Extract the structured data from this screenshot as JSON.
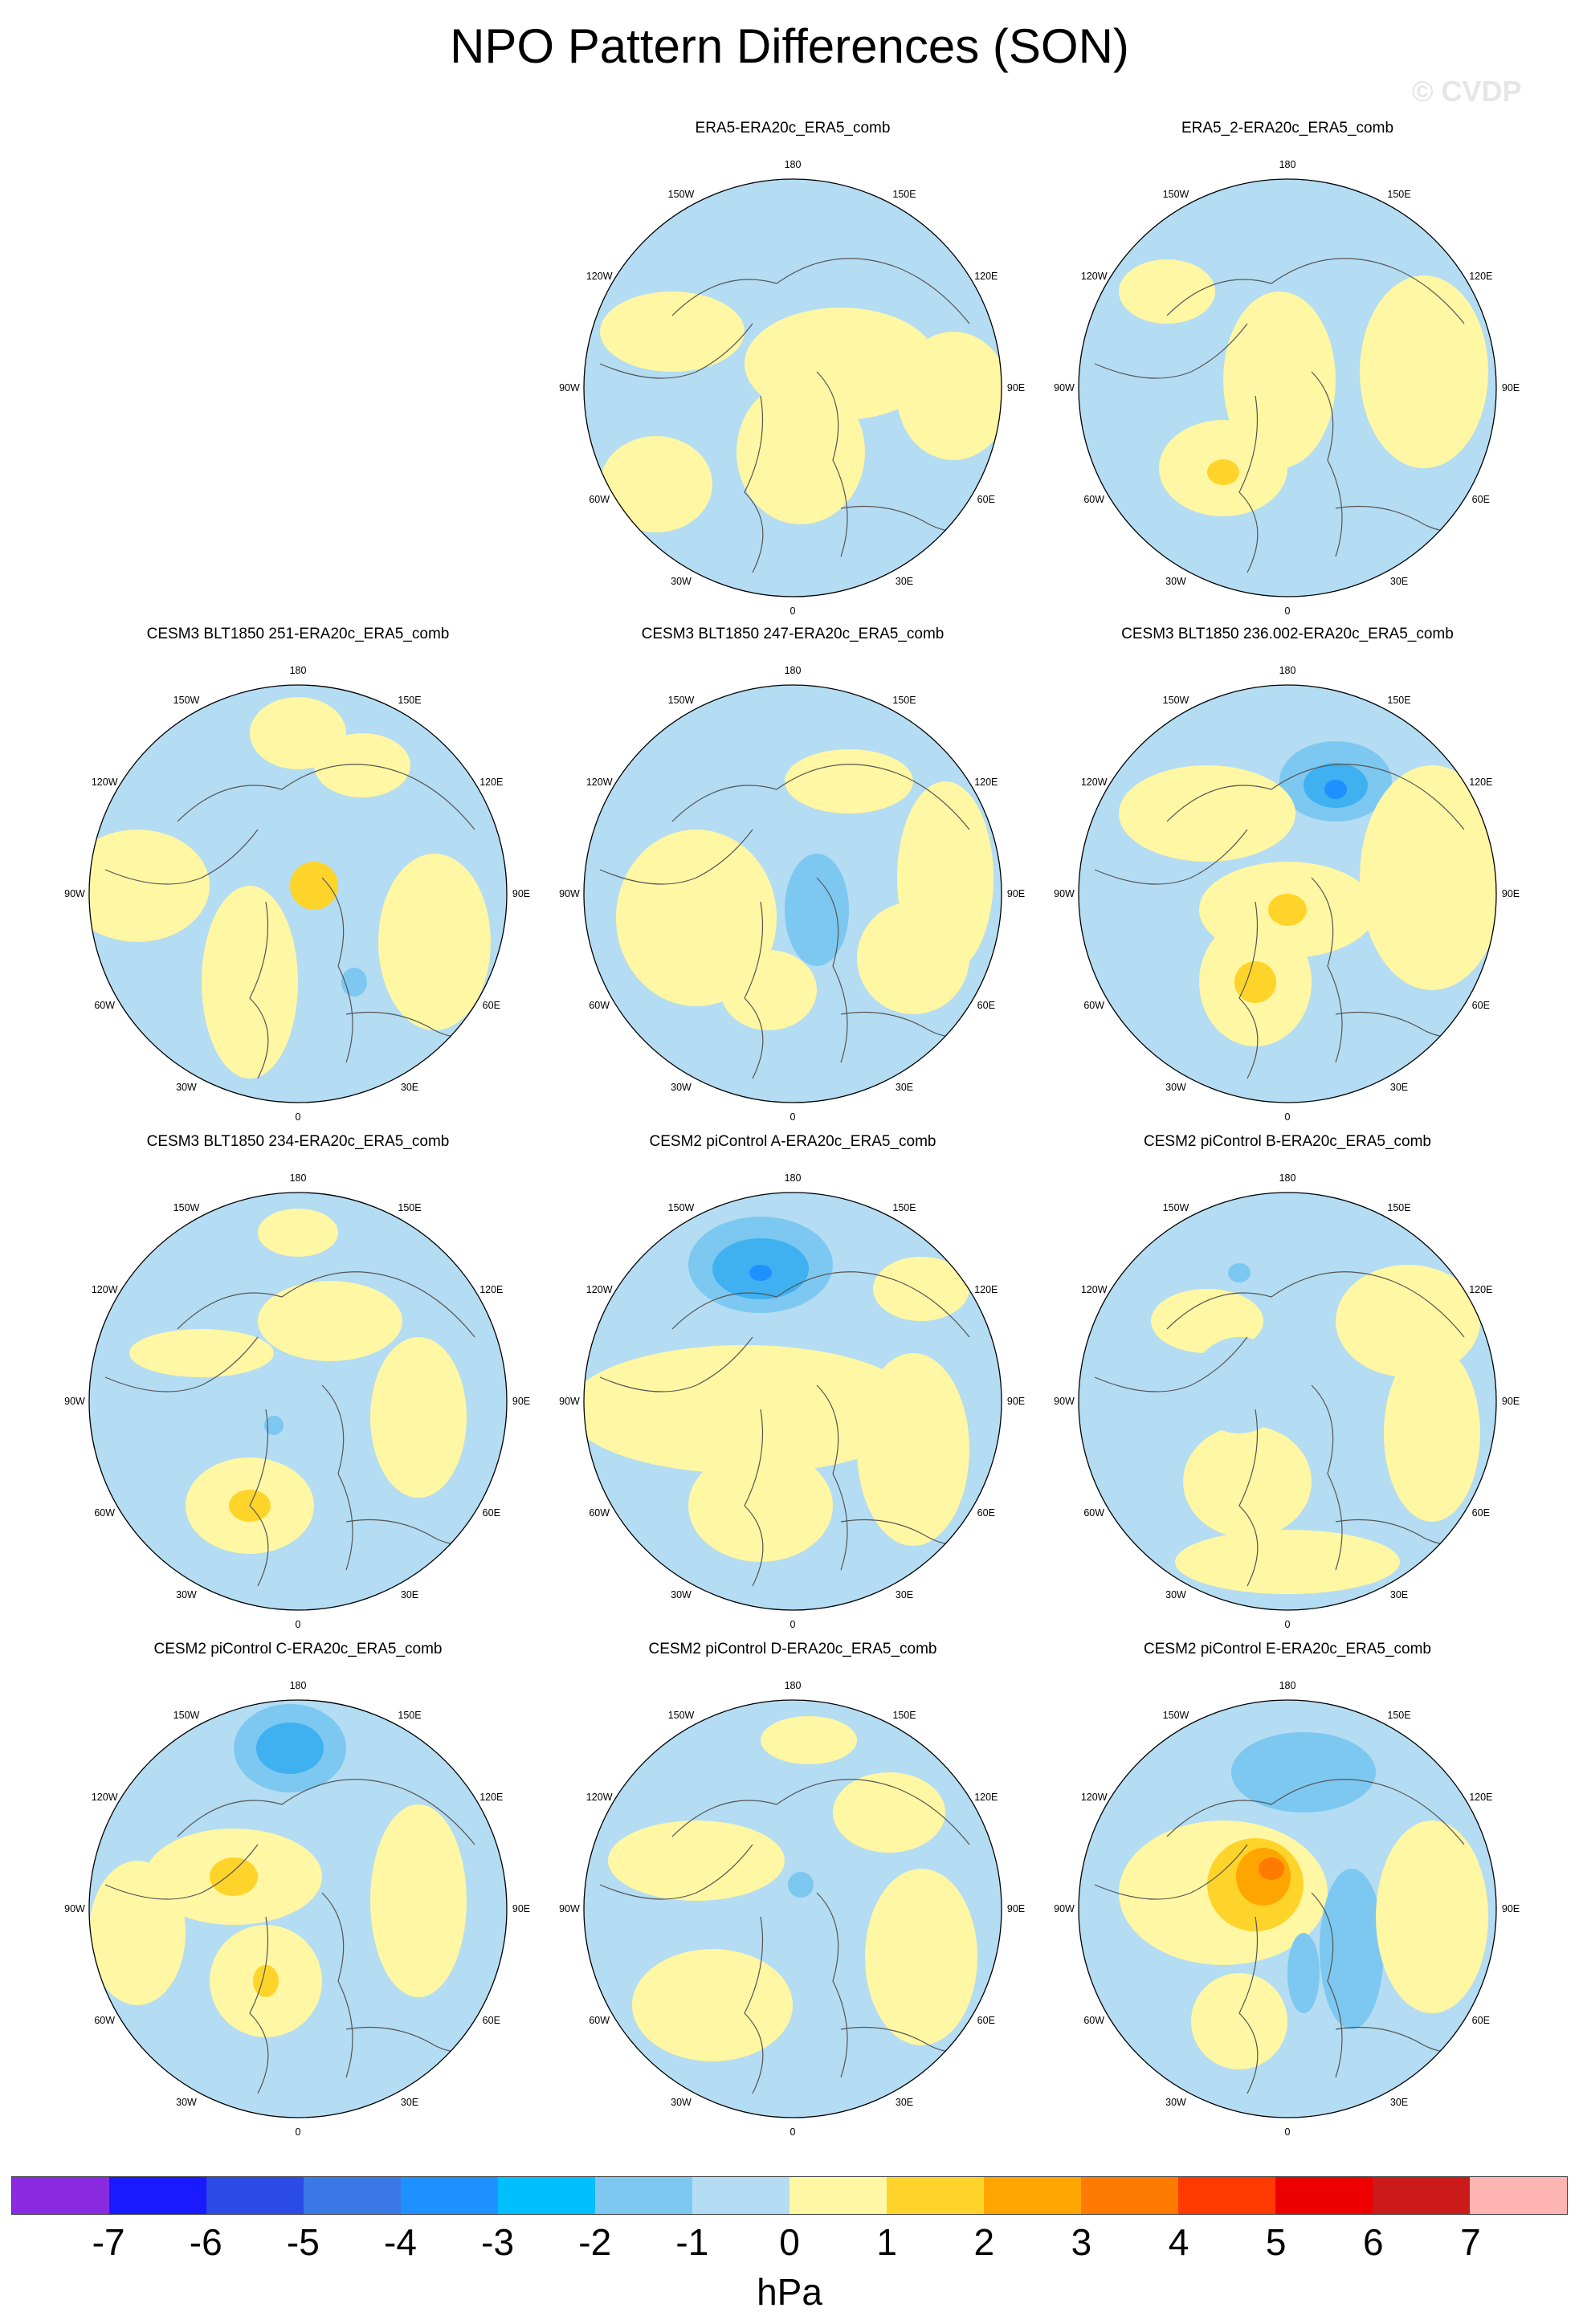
{
  "title": "NPO Pattern Differences (SON)",
  "watermark": "© CVDP",
  "longitude_labels": [
    "180",
    "150E",
    "120E",
    "90E",
    "60E",
    "30E",
    "0",
    "30W",
    "60W",
    "90W",
    "120W",
    "150W"
  ],
  "colorbar": {
    "unit": "hPa",
    "ticks": [
      "-7",
      "-6",
      "-5",
      "-4",
      "-3",
      "-2",
      "-1",
      "0",
      "1",
      "2",
      "3",
      "4",
      "5",
      "6",
      "7"
    ],
    "colors": [
      "#8a2be2",
      "#1a1aff",
      "#2a4be6",
      "#3a78e6",
      "#1e90ff",
      "#00bfff",
      "#7cc8f0",
      "#b4dcf2",
      "#fff7a3",
      "#ffd42a",
      "#ffa500",
      "#ff7a00",
      "#ff3a00",
      "#ee0000",
      "#cc1a1a",
      "#ffb4b4"
    ]
  },
  "panels": [
    {
      "title": "ERA5-ERA20c_ERA5_comb"
    },
    {
      "title": "ERA5_2-ERA20c_ERA5_comb"
    },
    {
      "title": "CESM3 BLT1850 251-ERA20c_ERA5_comb"
    },
    {
      "title": "CESM3 BLT1850 247-ERA20c_ERA5_comb"
    },
    {
      "title": "CESM3 BLT1850 236.002-ERA20c_ERA5_comb"
    },
    {
      "title": "CESM3 BLT1850 234-ERA20c_ERA5_comb"
    },
    {
      "title": "CESM2 piControl A-ERA20c_ERA5_comb"
    },
    {
      "title": "CESM2 piControl B-ERA20c_ERA5_comb"
    },
    {
      "title": "CESM2 piControl C-ERA20c_ERA5_comb"
    },
    {
      "title": "CESM2 piControl D-ERA20c_ERA5_comb"
    },
    {
      "title": "CESM2 piControl E-ERA20c_ERA5_comb"
    }
  ]
}
